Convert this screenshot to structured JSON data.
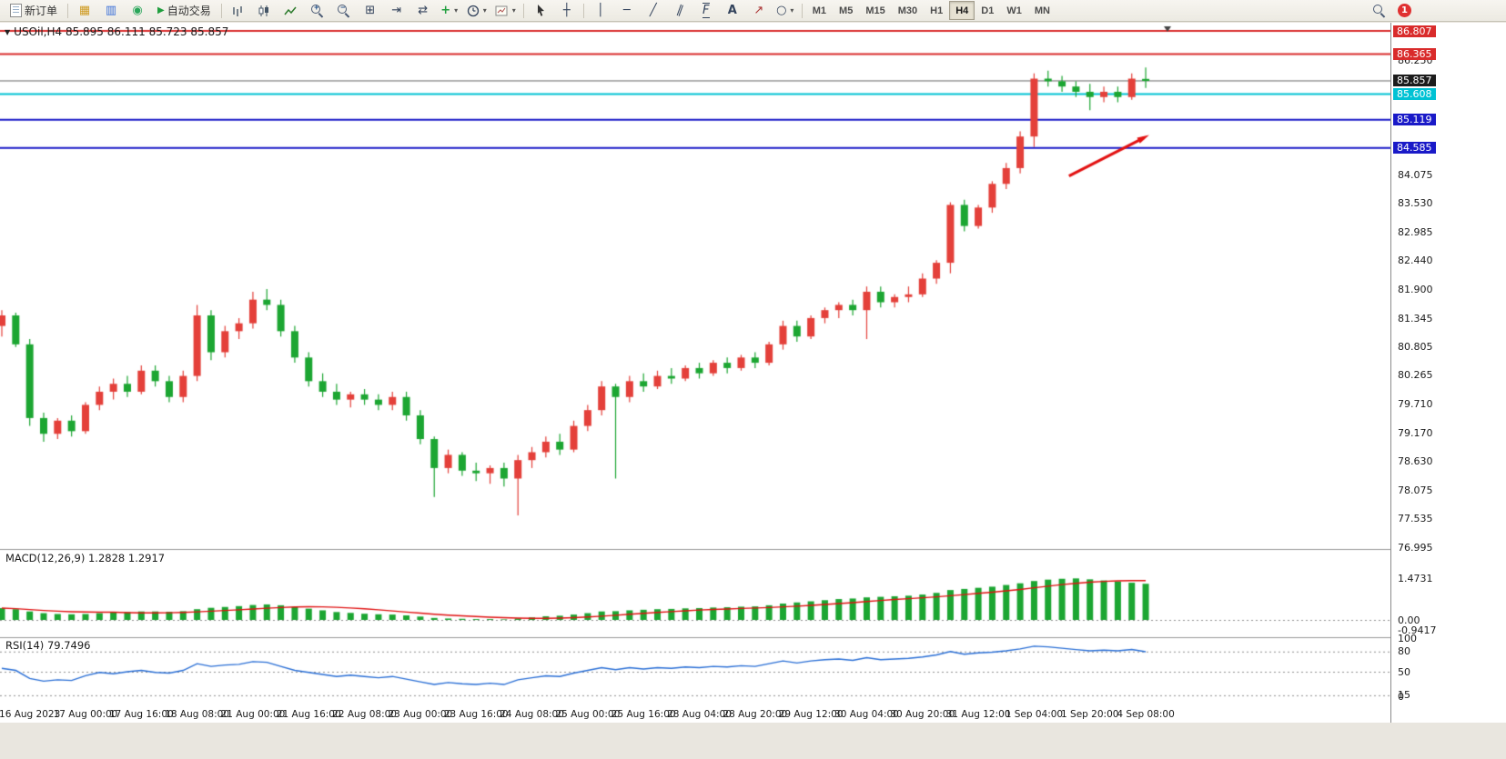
{
  "toolbar": {
    "new_order_label": "新订单",
    "autotrading_label": "自动交易",
    "timeframes": [
      "M1",
      "M5",
      "M15",
      "M30",
      "H1",
      "H4",
      "D1",
      "W1",
      "MN"
    ],
    "active_timeframe": "H4",
    "notification_count": "1"
  },
  "icons": {
    "market_watch": "▦",
    "data_window": "▥",
    "navigator": "◉",
    "autotrading_play": "▶",
    "tile_windows": "⊞",
    "auto_scroll": "⇥",
    "chart_shift": "⇄",
    "indicators_plus": "+",
    "caret": "▾",
    "crosshair": "┼",
    "vline": "│",
    "hline": "─",
    "trendline": "╱",
    "channel": "∥",
    "fibonacci": "F",
    "text_tool": "A",
    "arrows_tool": "↗",
    "shapes_tool": "○",
    "collapse_caret": "▼",
    "zoom_in_sign": "+",
    "zoom_out_sign": "−"
  },
  "chart": {
    "symbol_header": "USOil,H4 85.895 86.111 85.723 85.857",
    "macd_header": "MACD(12,26,9) 1.2828 1.2917",
    "rsi_header": "RSI(14) 79.7496"
  },
  "chart_data": {
    "type": "candlestick",
    "symbol": "USOil",
    "timeframe": "H4",
    "ohlc_current": {
      "open": "85.895",
      "high": "86.111",
      "low": "85.723",
      "close": "85.857"
    },
    "colors": {
      "up": "#e4403a",
      "down": "#1ca632",
      "macd_hist": "#1ca632",
      "macd_signal": "#e01212",
      "rsi_line": "#2a6fd6",
      "level_dotted": "#8f8f8f"
    },
    "price_axis": {
      "ylim": [
        76.995,
        86.807
      ],
      "ticks": [
        "86.250",
        "84.075",
        "83.530",
        "82.985",
        "82.440",
        "81.900",
        "81.345",
        "80.805",
        "80.265",
        "79.710",
        "79.170",
        "78.630",
        "78.075",
        "77.535",
        "76.995"
      ]
    },
    "price_lines": [
      {
        "price": "86.807",
        "color": "#d92b2b",
        "name": "resistance-line-1"
      },
      {
        "price": "86.365",
        "color": "#d92b2b",
        "name": "resistance-line-2"
      },
      {
        "price": "85.608",
        "color": "#00c2d4",
        "name": "support-line-cyan"
      },
      {
        "price": "85.119",
        "color": "#1a1ac8",
        "name": "support-line-blue-1"
      },
      {
        "price": "84.585",
        "color": "#1a1ac8",
        "name": "support-line-blue-2"
      }
    ],
    "current_price": {
      "price": "85.857",
      "label_bg": "#1c1c1c",
      "line_color": "#666666"
    },
    "arrow": {
      "from_bar": 76.5,
      "from_price": 84.05,
      "to_bar": 81.9,
      "to_price": 84.78,
      "color": "#e31212"
    },
    "time_labels": [
      "16 Aug 2023",
      "17 Aug 00:00",
      "17 Aug 16:00",
      "18 Aug 08:00",
      "21 Aug 00:00",
      "21 Aug 16:00",
      "22 Aug 08:00",
      "23 Aug 00:00",
      "23 Aug 16:00",
      "24 Aug 08:00",
      "25 Aug 00:00",
      "25 Aug 16:00",
      "28 Aug 04:00",
      "28 Aug 20:00",
      "29 Aug 12:00",
      "30 Aug 04:00",
      "30 Aug 20:00",
      "31 Aug 12:00",
      "1 Sep 04:00",
      "1 Sep 20:00",
      "4 Sep 08:00"
    ],
    "candles": [
      [
        81.2,
        81.5,
        81.0,
        81.4
      ],
      [
        81.4,
        81.45,
        80.8,
        80.85
      ],
      [
        80.85,
        80.95,
        79.3,
        79.45
      ],
      [
        79.45,
        79.55,
        79.0,
        79.15
      ],
      [
        79.15,
        79.45,
        79.05,
        79.4
      ],
      [
        79.4,
        79.5,
        79.1,
        79.2
      ],
      [
        79.2,
        79.75,
        79.15,
        79.7
      ],
      [
        79.7,
        80.05,
        79.6,
        79.95
      ],
      [
        79.95,
        80.2,
        79.8,
        80.1
      ],
      [
        80.1,
        80.25,
        79.85,
        79.95
      ],
      [
        79.95,
        80.45,
        79.9,
        80.35
      ],
      [
        80.35,
        80.45,
        80.05,
        80.15
      ],
      [
        80.15,
        80.25,
        79.75,
        79.85
      ],
      [
        79.85,
        80.35,
        79.75,
        80.25
      ],
      [
        80.25,
        81.6,
        80.15,
        81.4
      ],
      [
        81.4,
        81.5,
        80.55,
        80.7
      ],
      [
        80.7,
        81.2,
        80.6,
        81.1
      ],
      [
        81.1,
        81.35,
        80.95,
        81.25
      ],
      [
        81.25,
        81.85,
        81.15,
        81.7
      ],
      [
        81.7,
        81.9,
        81.5,
        81.6
      ],
      [
        81.6,
        81.7,
        81.0,
        81.1
      ],
      [
        81.1,
        81.2,
        80.5,
        80.6
      ],
      [
        80.6,
        80.7,
        80.05,
        80.15
      ],
      [
        80.15,
        80.3,
        79.85,
        79.95
      ],
      [
        79.95,
        80.1,
        79.7,
        79.8
      ],
      [
        79.8,
        79.95,
        79.65,
        79.9
      ],
      [
        79.9,
        80.0,
        79.7,
        79.8
      ],
      [
        79.8,
        79.9,
        79.6,
        79.7
      ],
      [
        79.7,
        79.95,
        79.6,
        79.85
      ],
      [
        79.85,
        79.95,
        79.4,
        79.5
      ],
      [
        79.5,
        79.6,
        78.95,
        79.05
      ],
      [
        79.05,
        79.1,
        77.95,
        78.5
      ],
      [
        78.5,
        78.85,
        78.4,
        78.75
      ],
      [
        78.75,
        78.8,
        78.35,
        78.45
      ],
      [
        78.45,
        78.6,
        78.25,
        78.4
      ],
      [
        78.4,
        78.55,
        78.2,
        78.5
      ],
      [
        78.5,
        78.6,
        78.15,
        78.3
      ],
      [
        78.3,
        78.75,
        77.6,
        78.65
      ],
      [
        78.65,
        78.9,
        78.5,
        78.8
      ],
      [
        78.8,
        79.1,
        78.7,
        79.0
      ],
      [
        79.0,
        79.15,
        78.75,
        78.85
      ],
      [
        78.85,
        79.4,
        78.8,
        79.3
      ],
      [
        79.3,
        79.7,
        79.2,
        79.6
      ],
      [
        79.6,
        80.15,
        79.5,
        80.05
      ],
      [
        80.05,
        80.1,
        78.3,
        79.85
      ],
      [
        79.85,
        80.25,
        79.75,
        80.15
      ],
      [
        80.15,
        80.3,
        79.95,
        80.05
      ],
      [
        80.05,
        80.35,
        80.0,
        80.25
      ],
      [
        80.25,
        80.4,
        80.1,
        80.2
      ],
      [
        80.2,
        80.45,
        80.15,
        80.4
      ],
      [
        80.4,
        80.5,
        80.2,
        80.3
      ],
      [
        80.3,
        80.55,
        80.25,
        80.5
      ],
      [
        80.5,
        80.6,
        80.3,
        80.4
      ],
      [
        80.4,
        80.65,
        80.35,
        80.6
      ],
      [
        80.6,
        80.7,
        80.4,
        80.5
      ],
      [
        80.5,
        80.9,
        80.45,
        80.85
      ],
      [
        80.85,
        81.3,
        80.75,
        81.2
      ],
      [
        81.2,
        81.3,
        80.9,
        81.0
      ],
      [
        81.0,
        81.4,
        80.95,
        81.35
      ],
      [
        81.35,
        81.55,
        81.25,
        81.5
      ],
      [
        81.5,
        81.65,
        81.35,
        81.6
      ],
      [
        81.6,
        81.7,
        81.4,
        81.5
      ],
      [
        81.5,
        81.95,
        80.95,
        81.85
      ],
      [
        81.85,
        81.95,
        81.55,
        81.65
      ],
      [
        81.65,
        81.8,
        81.55,
        81.75
      ],
      [
        81.75,
        81.95,
        81.65,
        81.8
      ],
      [
        81.8,
        82.2,
        81.75,
        82.1
      ],
      [
        82.1,
        82.45,
        82.0,
        82.4
      ],
      [
        82.4,
        83.55,
        82.2,
        83.5
      ],
      [
        83.5,
        83.6,
        83.0,
        83.1
      ],
      [
        83.1,
        83.5,
        83.05,
        83.45
      ],
      [
        83.45,
        83.95,
        83.35,
        83.9
      ],
      [
        83.9,
        84.3,
        83.8,
        84.2
      ],
      [
        84.2,
        84.9,
        84.1,
        84.8
      ],
      [
        84.8,
        86.0,
        84.6,
        85.9
      ],
      [
        85.9,
        86.05,
        85.75,
        85.85
      ],
      [
        85.85,
        85.95,
        85.65,
        85.75
      ],
      [
        85.75,
        85.85,
        85.55,
        85.65
      ],
      [
        85.65,
        85.8,
        85.3,
        85.55
      ],
      [
        85.55,
        85.75,
        85.45,
        85.65
      ],
      [
        85.65,
        85.75,
        85.45,
        85.55
      ],
      [
        85.55,
        86.0,
        85.5,
        85.9
      ],
      [
        85.895,
        86.111,
        85.723,
        85.857
      ]
    ],
    "macd": {
      "params": "12,26,9",
      "value": "1.2828",
      "signal_value": "1.2917",
      "scale": [
        "1.4731",
        "0.00",
        "-0.9417"
      ],
      "hist": [
        0.42,
        0.38,
        0.3,
        0.24,
        0.21,
        0.2,
        0.21,
        0.24,
        0.26,
        0.28,
        0.3,
        0.3,
        0.29,
        0.31,
        0.38,
        0.43,
        0.46,
        0.49,
        0.53,
        0.55,
        0.52,
        0.46,
        0.4,
        0.34,
        0.28,
        0.25,
        0.22,
        0.2,
        0.19,
        0.16,
        0.12,
        0.07,
        0.05,
        0.04,
        0.03,
        0.03,
        0.02,
        0.05,
        0.09,
        0.13,
        0.15,
        0.19,
        0.24,
        0.3,
        0.31,
        0.34,
        0.36,
        0.38,
        0.39,
        0.41,
        0.42,
        0.44,
        0.45,
        0.47,
        0.48,
        0.52,
        0.58,
        0.62,
        0.66,
        0.7,
        0.74,
        0.76,
        0.8,
        0.82,
        0.84,
        0.86,
        0.9,
        0.96,
        1.06,
        1.1,
        1.14,
        1.18,
        1.24,
        1.3,
        1.38,
        1.43,
        1.46,
        1.4731,
        1.44,
        1.4,
        1.36,
        1.32,
        1.2828
      ]
    },
    "rsi": {
      "period": "14",
      "value": "79.7496",
      "levels": [
        "100",
        "80",
        "50",
        "15",
        "0"
      ],
      "dotted_levels": [
        80,
        50,
        15
      ],
      "values": [
        55,
        52,
        40,
        36,
        38,
        37,
        44,
        49,
        47,
        50,
        52,
        49,
        48,
        52,
        62,
        58,
        60,
        61,
        65,
        64,
        58,
        52,
        49,
        46,
        43,
        45,
        43,
        41,
        43,
        39,
        35,
        31,
        34,
        32,
        31,
        33,
        31,
        38,
        41,
        44,
        43,
        48,
        52,
        56,
        53,
        56,
        54,
        56,
        55,
        57,
        56,
        58,
        57,
        59,
        58,
        62,
        66,
        63,
        66,
        68,
        69,
        67,
        71,
        68,
        69,
        70,
        72,
        75,
        80,
        76,
        78,
        79,
        81,
        84,
        88,
        87,
        85,
        83,
        81,
        82,
        81,
        83,
        79.7496
      ]
    }
  }
}
